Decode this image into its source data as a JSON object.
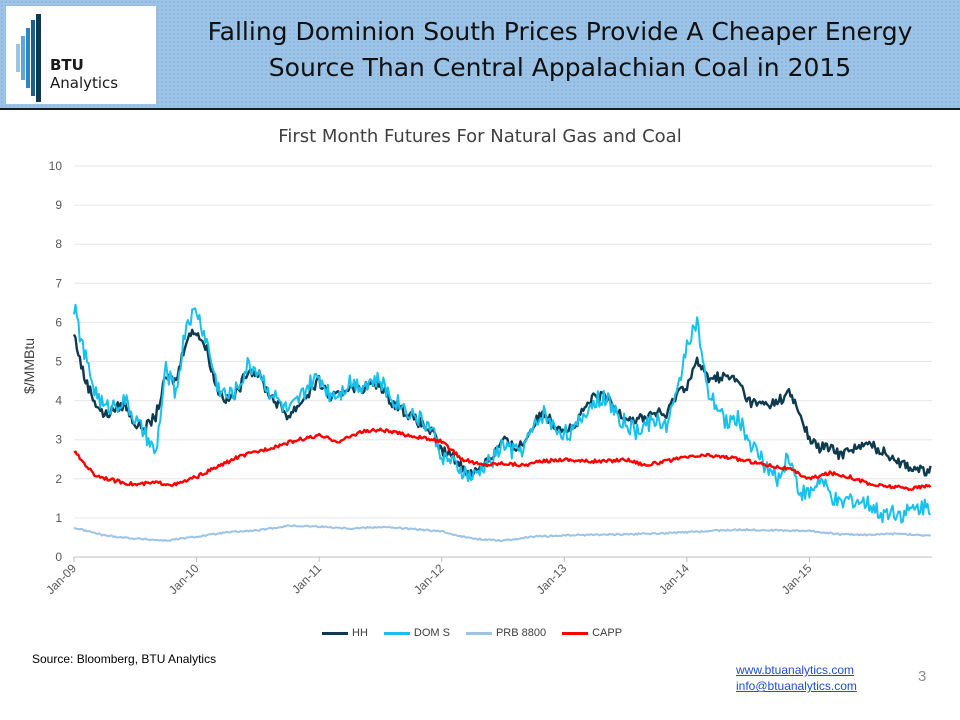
{
  "header": {
    "logo_text_bold": "BTU",
    "logo_text_rest": " Analytics",
    "title_line1": "Falling Dominion South Prices Provide A Cheaper Energy",
    "title_line2": "Source Than Central Appalachian Coal in 2015",
    "banner_color": "#9dc3e6"
  },
  "chart_data": {
    "type": "line",
    "title": "First Month Futures For Natural Gas and Coal",
    "xlabel": "",
    "ylabel": "$/MMBtu",
    "ylim": [
      0,
      10
    ],
    "y_ticks": [
      "0",
      "1",
      "2",
      "3",
      "4",
      "5",
      "6",
      "7",
      "8",
      "9",
      "10"
    ],
    "x_ticks": [
      "Jan-09",
      "Jan-10",
      "Jan-11",
      "Jan-12",
      "Jan-13",
      "Jan-14",
      "Jan-15"
    ],
    "x_range": [
      "2009-01",
      "2015-12"
    ],
    "grid": "horizontal",
    "legend_position": "bottom",
    "series": [
      {
        "name": "HH",
        "color": "#0e3a4f",
        "x": [
          "2009-01",
          "2009-02",
          "2009-03",
          "2009-04",
          "2009-05",
          "2009-06",
          "2009-07",
          "2009-08",
          "2009-09",
          "2009-10",
          "2009-11",
          "2009-12",
          "2010-01",
          "2010-02",
          "2010-03",
          "2010-04",
          "2010-05",
          "2010-06",
          "2010-07",
          "2010-08",
          "2010-09",
          "2010-10",
          "2010-11",
          "2010-12",
          "2011-01",
          "2011-02",
          "2011-03",
          "2011-04",
          "2011-05",
          "2011-06",
          "2011-07",
          "2011-08",
          "2011-09",
          "2011-10",
          "2011-11",
          "2011-12",
          "2012-01",
          "2012-02",
          "2012-03",
          "2012-04",
          "2012-05",
          "2012-06",
          "2012-07",
          "2012-08",
          "2012-09",
          "2012-10",
          "2012-11",
          "2012-12",
          "2013-01",
          "2013-02",
          "2013-03",
          "2013-04",
          "2013-05",
          "2013-06",
          "2013-07",
          "2013-08",
          "2013-09",
          "2013-10",
          "2013-11",
          "2013-12",
          "2014-01",
          "2014-02",
          "2014-03",
          "2014-04",
          "2014-05",
          "2014-06",
          "2014-07",
          "2014-08",
          "2014-09",
          "2014-10",
          "2014-11",
          "2014-12",
          "2015-01",
          "2015-02",
          "2015-03",
          "2015-04",
          "2015-05",
          "2015-06",
          "2015-07",
          "2015-08",
          "2015-09",
          "2015-10",
          "2015-11",
          "2015-12"
        ],
        "values": [
          5.7,
          4.6,
          4.0,
          3.6,
          3.8,
          3.9,
          3.4,
          3.3,
          3.6,
          4.6,
          4.5,
          5.6,
          5.8,
          5.3,
          4.3,
          4.0,
          4.2,
          4.8,
          4.7,
          4.2,
          3.9,
          3.6,
          3.9,
          4.2,
          4.5,
          4.1,
          4.1,
          4.4,
          4.3,
          4.4,
          4.4,
          4.0,
          3.8,
          3.6,
          3.4,
          3.2,
          2.7,
          2.6,
          2.3,
          2.1,
          2.4,
          2.6,
          3.0,
          2.8,
          2.9,
          3.4,
          3.7,
          3.4,
          3.3,
          3.3,
          3.8,
          4.1,
          4.1,
          3.8,
          3.6,
          3.5,
          3.6,
          3.7,
          3.6,
          4.2,
          4.4,
          5.0,
          4.6,
          4.6,
          4.6,
          4.5,
          4.0,
          3.9,
          3.9,
          4.0,
          4.2,
          3.7,
          3.0,
          2.8,
          2.8,
          2.6,
          2.8,
          2.8,
          2.9,
          2.7,
          2.6,
          2.4,
          2.3,
          2.2
        ]
      },
      {
        "name": "DOM S",
        "color": "#19c0ec",
        "x": [
          "2009-01",
          "2009-02",
          "2009-03",
          "2009-04",
          "2009-05",
          "2009-06",
          "2009-07",
          "2009-08",
          "2009-09",
          "2009-10",
          "2009-11",
          "2009-12",
          "2010-01",
          "2010-02",
          "2010-03",
          "2010-04",
          "2010-05",
          "2010-06",
          "2010-07",
          "2010-08",
          "2010-09",
          "2010-10",
          "2010-11",
          "2010-12",
          "2011-01",
          "2011-02",
          "2011-03",
          "2011-04",
          "2011-05",
          "2011-06",
          "2011-07",
          "2011-08",
          "2011-09",
          "2011-10",
          "2011-11",
          "2011-12",
          "2012-01",
          "2012-02",
          "2012-03",
          "2012-04",
          "2012-05",
          "2012-06",
          "2012-07",
          "2012-08",
          "2012-09",
          "2012-10",
          "2012-11",
          "2012-12",
          "2013-01",
          "2013-02",
          "2013-03",
          "2013-04",
          "2013-05",
          "2013-06",
          "2013-07",
          "2013-08",
          "2013-09",
          "2013-10",
          "2013-11",
          "2013-12",
          "2014-01",
          "2014-02",
          "2014-03",
          "2014-04",
          "2014-05",
          "2014-06",
          "2014-07",
          "2014-08",
          "2014-09",
          "2014-10",
          "2014-11",
          "2014-12",
          "2015-01",
          "2015-02",
          "2015-03",
          "2015-04",
          "2015-05",
          "2015-06",
          "2015-07",
          "2015-08",
          "2015-09",
          "2015-10",
          "2015-11",
          "2015-12"
        ],
        "values": [
          6.4,
          5.2,
          4.3,
          3.8,
          3.9,
          4.0,
          3.5,
          3.1,
          2.6,
          4.8,
          4.2,
          6.0,
          6.3,
          5.5,
          4.4,
          4.1,
          4.3,
          4.9,
          4.8,
          4.3,
          4.0,
          3.7,
          4.0,
          4.4,
          4.6,
          4.2,
          4.2,
          4.5,
          4.4,
          4.5,
          4.5,
          4.1,
          3.9,
          3.7,
          3.5,
          3.3,
          2.6,
          2.4,
          2.2,
          2.0,
          2.3,
          2.5,
          2.9,
          2.7,
          2.8,
          3.3,
          3.7,
          3.3,
          3.2,
          3.2,
          3.7,
          4.0,
          4.1,
          3.7,
          3.4,
          3.2,
          3.4,
          3.5,
          3.4,
          4.1,
          5.5,
          6.0,
          4.2,
          3.8,
          3.4,
          3.6,
          3.0,
          2.6,
          2.2,
          2.0,
          2.6,
          1.7,
          1.6,
          2.0,
          1.6,
          1.3,
          1.5,
          1.4,
          1.3,
          1.1,
          1.2,
          1.1,
          1.2,
          1.3
        ]
      },
      {
        "name": "PRB 8800",
        "color": "#9dc3e6",
        "x": [
          "2009-01",
          "2009-04",
          "2009-07",
          "2009-10",
          "2010-01",
          "2010-04",
          "2010-07",
          "2010-10",
          "2011-01",
          "2011-04",
          "2011-07",
          "2011-10",
          "2012-01",
          "2012-04",
          "2012-07",
          "2012-10",
          "2013-01",
          "2013-04",
          "2013-07",
          "2013-10",
          "2014-01",
          "2014-04",
          "2014-07",
          "2014-10",
          "2015-01",
          "2015-04",
          "2015-07",
          "2015-10",
          "2015-12"
        ],
        "values": [
          0.75,
          0.55,
          0.47,
          0.42,
          0.52,
          0.63,
          0.68,
          0.8,
          0.78,
          0.73,
          0.77,
          0.72,
          0.65,
          0.47,
          0.42,
          0.52,
          0.55,
          0.57,
          0.58,
          0.6,
          0.63,
          0.68,
          0.7,
          0.68,
          0.67,
          0.58,
          0.57,
          0.6,
          0.55
        ]
      },
      {
        "name": "CAPP",
        "color": "#ff0000",
        "x": [
          "2009-01",
          "2009-03",
          "2009-05",
          "2009-07",
          "2009-09",
          "2009-11",
          "2010-01",
          "2010-03",
          "2010-05",
          "2010-07",
          "2010-09",
          "2010-11",
          "2011-01",
          "2011-03",
          "2011-05",
          "2011-07",
          "2011-09",
          "2011-11",
          "2012-01",
          "2012-03",
          "2012-05",
          "2012-07",
          "2012-09",
          "2012-11",
          "2013-01",
          "2013-03",
          "2013-05",
          "2013-07",
          "2013-09",
          "2013-11",
          "2014-01",
          "2014-03",
          "2014-05",
          "2014-07",
          "2014-09",
          "2014-11",
          "2015-01",
          "2015-03",
          "2015-05",
          "2015-07",
          "2015-09",
          "2015-11",
          "2015-12"
        ],
        "values": [
          2.7,
          2.1,
          1.95,
          1.85,
          1.9,
          1.85,
          2.05,
          2.3,
          2.55,
          2.7,
          2.85,
          3.0,
          3.1,
          2.95,
          3.2,
          3.25,
          3.15,
          3.05,
          2.95,
          2.5,
          2.35,
          2.4,
          2.35,
          2.45,
          2.5,
          2.45,
          2.45,
          2.5,
          2.35,
          2.45,
          2.55,
          2.6,
          2.55,
          2.45,
          2.35,
          2.25,
          2.0,
          2.15,
          2.05,
          1.85,
          1.8,
          1.75,
          1.8
        ]
      }
    ]
  },
  "footer": {
    "source": "Source: Bloomberg, BTU Analytics",
    "link1": "www.btuanalytics.com",
    "link2": "info@btuanalytics.com",
    "page_number": "3"
  }
}
